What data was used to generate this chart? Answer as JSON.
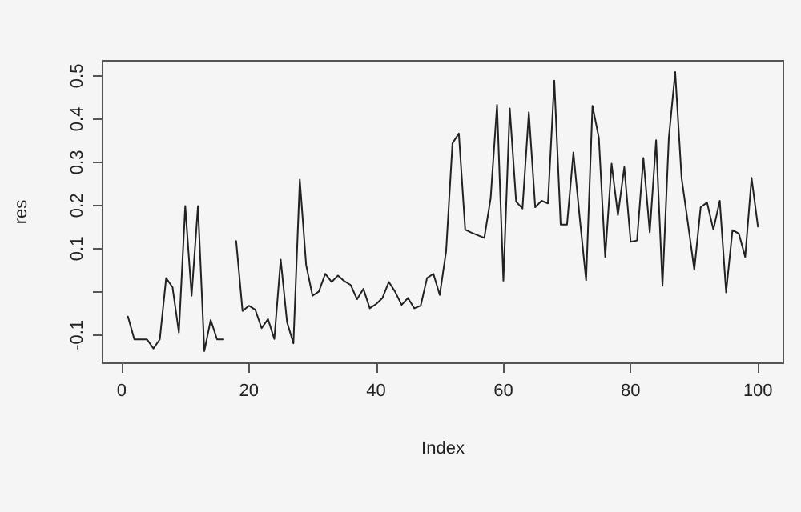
{
  "chart_data": {
    "type": "line",
    "xlabel": "Index",
    "ylabel": "res",
    "x": [
      1,
      2,
      3,
      4,
      5,
      6,
      7,
      8,
      9,
      10,
      11,
      12,
      13,
      14,
      15,
      16,
      17,
      18,
      19,
      20,
      21,
      22,
      23,
      24,
      25,
      26,
      27,
      28,
      29,
      30,
      31,
      32,
      33,
      34,
      35,
      36,
      37,
      38,
      39,
      40,
      41,
      42,
      43,
      44,
      45,
      46,
      47,
      48,
      49,
      50,
      51,
      52,
      53,
      54,
      55,
      56,
      57,
      58,
      59,
      60,
      61,
      62,
      63,
      64,
      65,
      66,
      67,
      68,
      69,
      70,
      71,
      72,
      73,
      74,
      75,
      76,
      77,
      78,
      79,
      80,
      81,
      82,
      83,
      84,
      85,
      86,
      87,
      88,
      89,
      90,
      91,
      92,
      93,
      94,
      95,
      96,
      97,
      98,
      99,
      100
    ],
    "values": [
      -0.057,
      -0.11,
      -0.11,
      -0.11,
      -0.131,
      -0.11,
      0.032,
      0.011,
      -0.094,
      0.199,
      -0.009,
      0.199,
      -0.137,
      -0.065,
      -0.11,
      -0.11,
      null,
      0.118,
      -0.044,
      -0.032,
      -0.041,
      -0.084,
      -0.063,
      -0.109,
      0.075,
      -0.07,
      -0.119,
      0.26,
      0.062,
      -0.009,
      0.001,
      0.042,
      0.023,
      0.038,
      0.025,
      0.016,
      -0.017,
      0.007,
      -0.038,
      -0.028,
      -0.014,
      0.023,
      0.0,
      -0.03,
      -0.014,
      -0.038,
      -0.032,
      0.032,
      0.042,
      -0.007,
      0.094,
      0.344,
      0.367,
      0.144,
      0.137,
      0.131,
      0.125,
      0.217,
      0.433,
      0.026,
      0.425,
      0.209,
      0.193,
      0.416,
      0.196,
      0.211,
      0.205,
      0.489,
      0.156,
      0.156,
      0.323,
      0.171,
      0.027,
      0.431,
      0.357,
      0.081,
      0.297,
      0.178,
      0.289,
      0.116,
      0.119,
      0.31,
      0.138,
      0.351,
      0.014,
      0.357,
      0.509,
      0.264,
      0.159,
      0.051,
      0.196,
      0.207,
      0.144,
      0.211,
      -0.001,
      0.143,
      0.135,
      0.081,
      0.264,
      0.151
    ],
    "color": "#222222",
    "xlim": [
      -3,
      104
    ],
    "xticks": [
      0,
      20,
      40,
      60,
      80,
      100
    ],
    "ylim": [
      -0.165,
      0.535
    ],
    "yticks": [
      -0.1,
      {
        "value": 0,
        "label": null
      },
      0.1,
      0.2,
      0.3,
      0.4,
      0.5
    ],
    "grid": false,
    "marker": "none",
    "line_style": "solid"
  }
}
